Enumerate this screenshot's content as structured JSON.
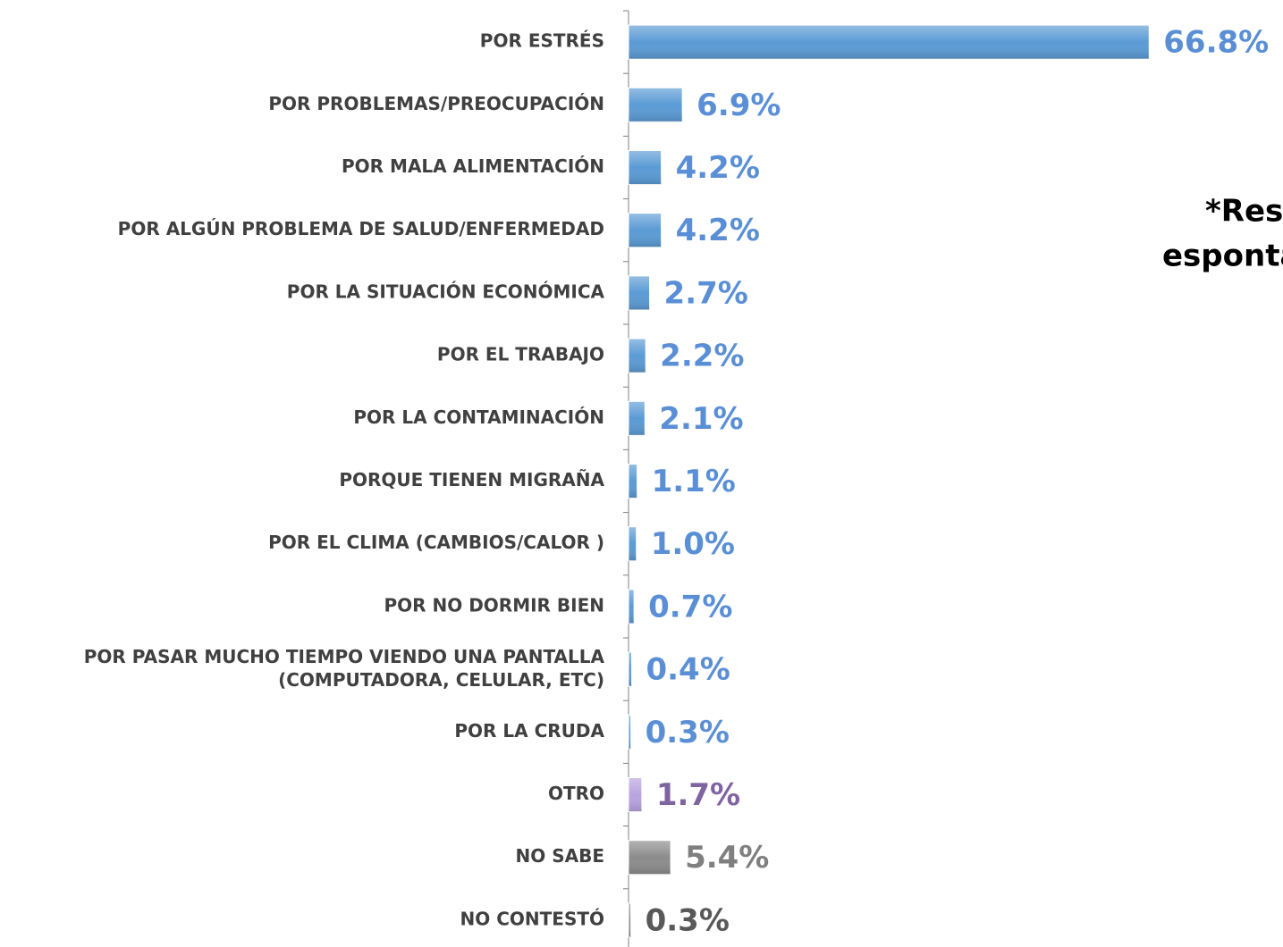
{
  "chart_data": {
    "type": "bar",
    "orientation": "horizontal",
    "categories": [
      "POR ESTRÉS",
      "POR PROBLEMAS/PREOCUPACIÓN",
      "POR MALA ALIMENTACIÓN",
      "POR ALGÚN PROBLEMA DE SALUD/ENFERMEDAD",
      "POR LA SITUACIÓN ECONÓMICA",
      "POR EL TRABAJO",
      "POR LA CONTAMINACIÓN",
      "PORQUE TIENEN MIGRAÑA",
      "POR EL CLIMA (CAMBIOS/CALOR )",
      "POR NO DORMIR BIEN",
      "POR PASAR MUCHO TIEMPO VIENDO UNA PANTALLA (COMPUTADORA, CELULAR, ETC)",
      "POR LA CRUDA",
      "OTRO",
      "NO SABE",
      "NO CONTESTÓ"
    ],
    "values": [
      66.8,
      6.9,
      4.2,
      4.2,
      2.7,
      2.2,
      2.1,
      1.1,
      1.0,
      0.7,
      0.4,
      0.3,
      1.7,
      5.4,
      0.3
    ],
    "value_labels": [
      "66.8%",
      "6.9%",
      "4.2%",
      "4.2%",
      "2.7%",
      "2.2%",
      "2.1%",
      "1.1%",
      "1.0%",
      "0.7%",
      "0.4%",
      "0.3%",
      "1.7%",
      "5.4%",
      "0.3%"
    ],
    "colors": [
      "#5b9bd5",
      "#5b9bd5",
      "#5b9bd5",
      "#5b9bd5",
      "#5b9bd5",
      "#5b9bd5",
      "#5b9bd5",
      "#5b9bd5",
      "#5b9bd5",
      "#5b9bd5",
      "#5b9bd5",
      "#5b9bd5",
      "#b9a3e0",
      "#8c8c8c",
      "#8c8c8c"
    ],
    "label_colors": [
      "#5a8fd6",
      "#5a8fd6",
      "#5a8fd6",
      "#5a8fd6",
      "#5a8fd6",
      "#5a8fd6",
      "#5a8fd6",
      "#5a8fd6",
      "#5a8fd6",
      "#5a8fd6",
      "#5a8fd6",
      "#5a8fd6",
      "#8064a2",
      "#7f7f7f",
      "#595959"
    ],
    "xlim": [
      0,
      67
    ],
    "annotation": [
      "*Respuesta",
      "espontánea"
    ]
  }
}
